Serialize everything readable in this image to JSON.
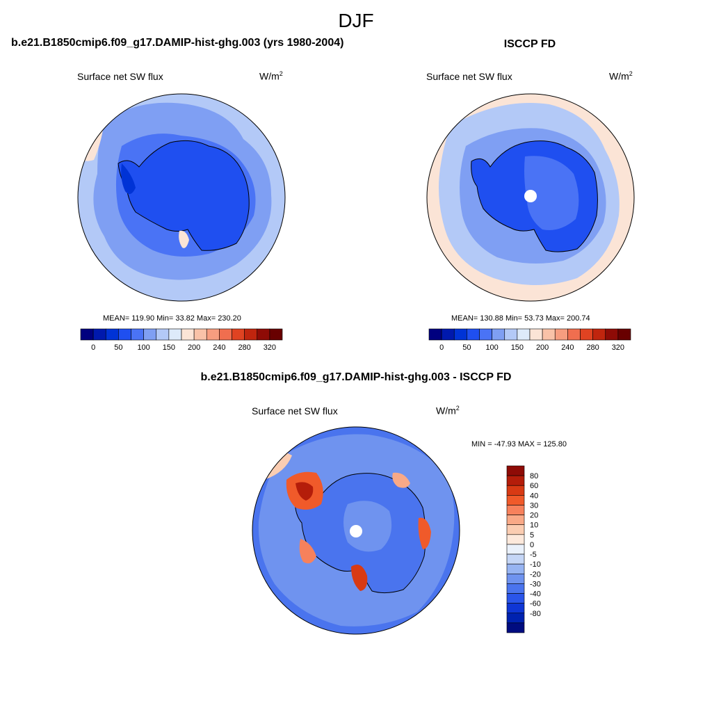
{
  "page": {
    "season_title": "DJF"
  },
  "chart_data": [
    {
      "type": "heatmap",
      "projection": "south-polar-stereographic",
      "title": "b.e21.B1850cmip6.f09_g17.DAMIP-hist-ghg.003 (yrs 1980-2004)",
      "variable": "Surface net SW flux",
      "units": "W/m",
      "units_sup": "2",
      "stats": {
        "label": "MEAN= 119.90  Min=  33.82  Max= 230.20",
        "mean": 119.9,
        "min": 33.82,
        "max": 230.2
      },
      "colorbar": {
        "orientation": "horizontal",
        "colors": [
          "#00007f",
          "#0019ad",
          "#0033d6",
          "#1f4ff0",
          "#4a73f5",
          "#7f9ff3",
          "#b3c9f7",
          "#ddeafa",
          "#fbe4d6",
          "#f9c2a8",
          "#f79d7f",
          "#f06e4f",
          "#e04322",
          "#c0250e",
          "#8e0b06",
          "#680000"
        ],
        "tick_labels": [
          "0",
          "50",
          "100",
          "150",
          "200",
          "240",
          "280",
          "320"
        ]
      }
    },
    {
      "type": "heatmap",
      "projection": "south-polar-stereographic",
      "title": "ISCCP FD",
      "variable": "Surface net SW flux",
      "units": "W/m",
      "units_sup": "2",
      "stats": {
        "label": "MEAN= 130.88  Min=  53.73  Max= 200.74",
        "mean": 130.88,
        "min": 53.73,
        "max": 200.74
      },
      "colorbar": {
        "orientation": "horizontal",
        "colors": [
          "#00007f",
          "#0019ad",
          "#0033d6",
          "#1f4ff0",
          "#4a73f5",
          "#7f9ff3",
          "#b3c9f7",
          "#ddeafa",
          "#fbe4d6",
          "#f9c2a8",
          "#f79d7f",
          "#f06e4f",
          "#e04322",
          "#c0250e",
          "#8e0b06",
          "#680000"
        ],
        "tick_labels": [
          "0",
          "50",
          "100",
          "150",
          "200",
          "240",
          "280",
          "320"
        ]
      }
    },
    {
      "type": "heatmap",
      "projection": "south-polar-stereographic",
      "title": "b.e21.B1850cmip6.f09_g17.DAMIP-hist-ghg.003 - ISCCP FD",
      "variable": "Surface net SW flux",
      "units": "W/m",
      "units_sup": "2",
      "stats": {
        "label": "MIN = -47.93 MAX = 125.80",
        "min": -47.93,
        "max": 125.8
      },
      "colorbar": {
        "orientation": "vertical",
        "colors": [
          "#8e0b06",
          "#b41d0a",
          "#d83a14",
          "#f05a2a",
          "#f7815c",
          "#f9a987",
          "#fbcdb2",
          "#fde9dc",
          "#eaf1fb",
          "#c5d6f6",
          "#97b4f2",
          "#6f93ef",
          "#4a74ee",
          "#2a55ea",
          "#0f36d5",
          "#0022b0",
          "#000c80"
        ],
        "tick_labels": [
          "80",
          "60",
          "40",
          "30",
          "20",
          "10",
          "5",
          "0",
          "-5",
          "-10",
          "-20",
          "-30",
          "-40",
          "-60",
          "-80"
        ]
      }
    }
  ]
}
